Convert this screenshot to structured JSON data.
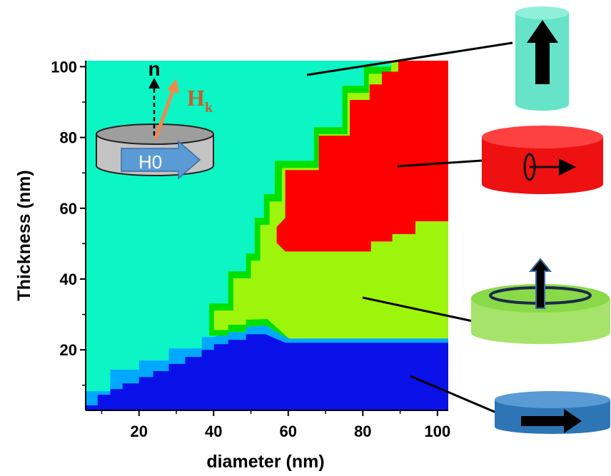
{
  "chart_data": {
    "type": "phase-map",
    "x_label": "diameter (nm)",
    "y_label": "Thickness (nm)",
    "xlim": [
      5.7,
      102.9
    ],
    "ylim": [
      2.9,
      101.7
    ],
    "xticks": [
      20,
      40,
      60,
      80,
      100
    ],
    "yticks": [
      20,
      40,
      60,
      80,
      100
    ],
    "xminorticks": [
      10,
      30,
      50,
      70,
      90
    ],
    "yminorticks": [
      10,
      30,
      50,
      70,
      90
    ],
    "annotations": [
      "n",
      "H",
      "k",
      "H0"
    ],
    "regions": [
      {
        "color": "#0cf5c4",
        "x": [
          5.7,
          5.7,
          102.9,
          102.9
        ],
        "y": [
          2.9,
          101.7,
          101.7,
          2.9
        ]
      },
      {
        "color": "#00a8ff",
        "x": [
          5.7,
          5.7,
          12.3,
          12.3,
          20,
          20,
          28.0,
          28.0,
          36.8,
          36.8,
          40.1,
          43.9,
          48.7,
          48.7,
          53.9,
          59.2,
          102.9,
          102.9
        ],
        "y": [
          2.9,
          8.3,
          8.3,
          14.4,
          14.4,
          17.0,
          17.0,
          20.4,
          20.4,
          23.6,
          23.6,
          25.0,
          25.0,
          26.5,
          26.9,
          23.6,
          23.6,
          2.9
        ]
      },
      {
        "color": "#00e000",
        "x": [
          38.8,
          38.8,
          43.9,
          43.9,
          48.7,
          48.7,
          51.0,
          51.0,
          53.5,
          53.5,
          56.4,
          56.4,
          66.9,
          66.9,
          74.5,
          74.5,
          80.3,
          80.3,
          88.9,
          88.9,
          102.9,
          102.9,
          59.2,
          53.9,
          48.7,
          48.7,
          43.9,
          43.9
        ],
        "y": [
          24.0,
          33.1,
          33.1,
          42.2,
          42.2,
          47.2,
          47.2,
          57.3,
          57.3,
          64.0,
          64.0,
          73.4,
          73.4,
          82.9,
          82.9,
          94.6,
          94.6,
          100.0,
          100.0,
          101.7,
          101.7,
          23.6,
          23.6,
          26.9,
          26.5,
          25.0,
          25.0,
          24.0
        ]
      },
      {
        "color": "#9ef50c",
        "x": [
          40.1,
          40.1,
          45.3,
          45.3,
          50.0,
          50.0,
          52.5,
          52.5,
          55.0,
          55.0,
          58.3,
          58.3,
          68.2,
          68.2,
          75.9,
          75.9,
          81.6,
          81.6,
          87.6,
          87.6,
          102.9,
          102.9,
          60.2,
          54.4,
          48.7,
          48.7,
          43.9,
          43.9,
          40.1
        ],
        "y": [
          24.0,
          31.1,
          31.1,
          40.2,
          40.2,
          45.2,
          45.2,
          55.3,
          55.3,
          61.9,
          61.9,
          71.4,
          71.4,
          80.9,
          80.9,
          92.6,
          92.6,
          98.0,
          98.0,
          101.7,
          101.7,
          23.2,
          23.2,
          28.7,
          28.5,
          27.1,
          27.1,
          25.6,
          25.6
        ]
      },
      {
        "color": "#ff0000",
        "x": [
          89.5,
          102.9,
          102.9,
          94.1,
          94.1,
          87.9,
          87.9,
          82.2,
          82.2,
          59.2,
          56.9,
          56.9,
          59.2,
          59.2,
          68.2,
          68.2,
          76.5,
          76.5,
          81.8,
          81.8,
          85.1,
          85.1,
          89.5
        ],
        "y": [
          101.7,
          101.7,
          56.3,
          56.3,
          52.7,
          52.7,
          50.6,
          50.6,
          47.8,
          47.8,
          50.2,
          54.7,
          57.3,
          70.8,
          70.8,
          80.5,
          80.5,
          90.6,
          90.6,
          95.0,
          95.0,
          98.6,
          98.6
        ]
      },
      {
        "color": "#0a10e8",
        "x": [
          5.7,
          5.7,
          8.9,
          8.9,
          12.3,
          12.3,
          15.6,
          15.6,
          20,
          20,
          23.8,
          23.8,
          28.0,
          28.0,
          32.4,
          32.4,
          36.8,
          36.8,
          40.1,
          40.1,
          43.9,
          43.9,
          48.7,
          48.7,
          53.9,
          59.2,
          102.9,
          102.9
        ],
        "y": [
          2.9,
          4.3,
          4.3,
          7.3,
          7.3,
          8.9,
          8.9,
          10.5,
          10.5,
          12.3,
          12.3,
          14.0,
          14.0,
          16.0,
          16.0,
          18.0,
          18.0,
          20.0,
          20.0,
          21.6,
          21.6,
          22.8,
          22.8,
          24.4,
          24.4,
          22.0,
          22.0,
          2.9
        ]
      }
    ]
  }
}
